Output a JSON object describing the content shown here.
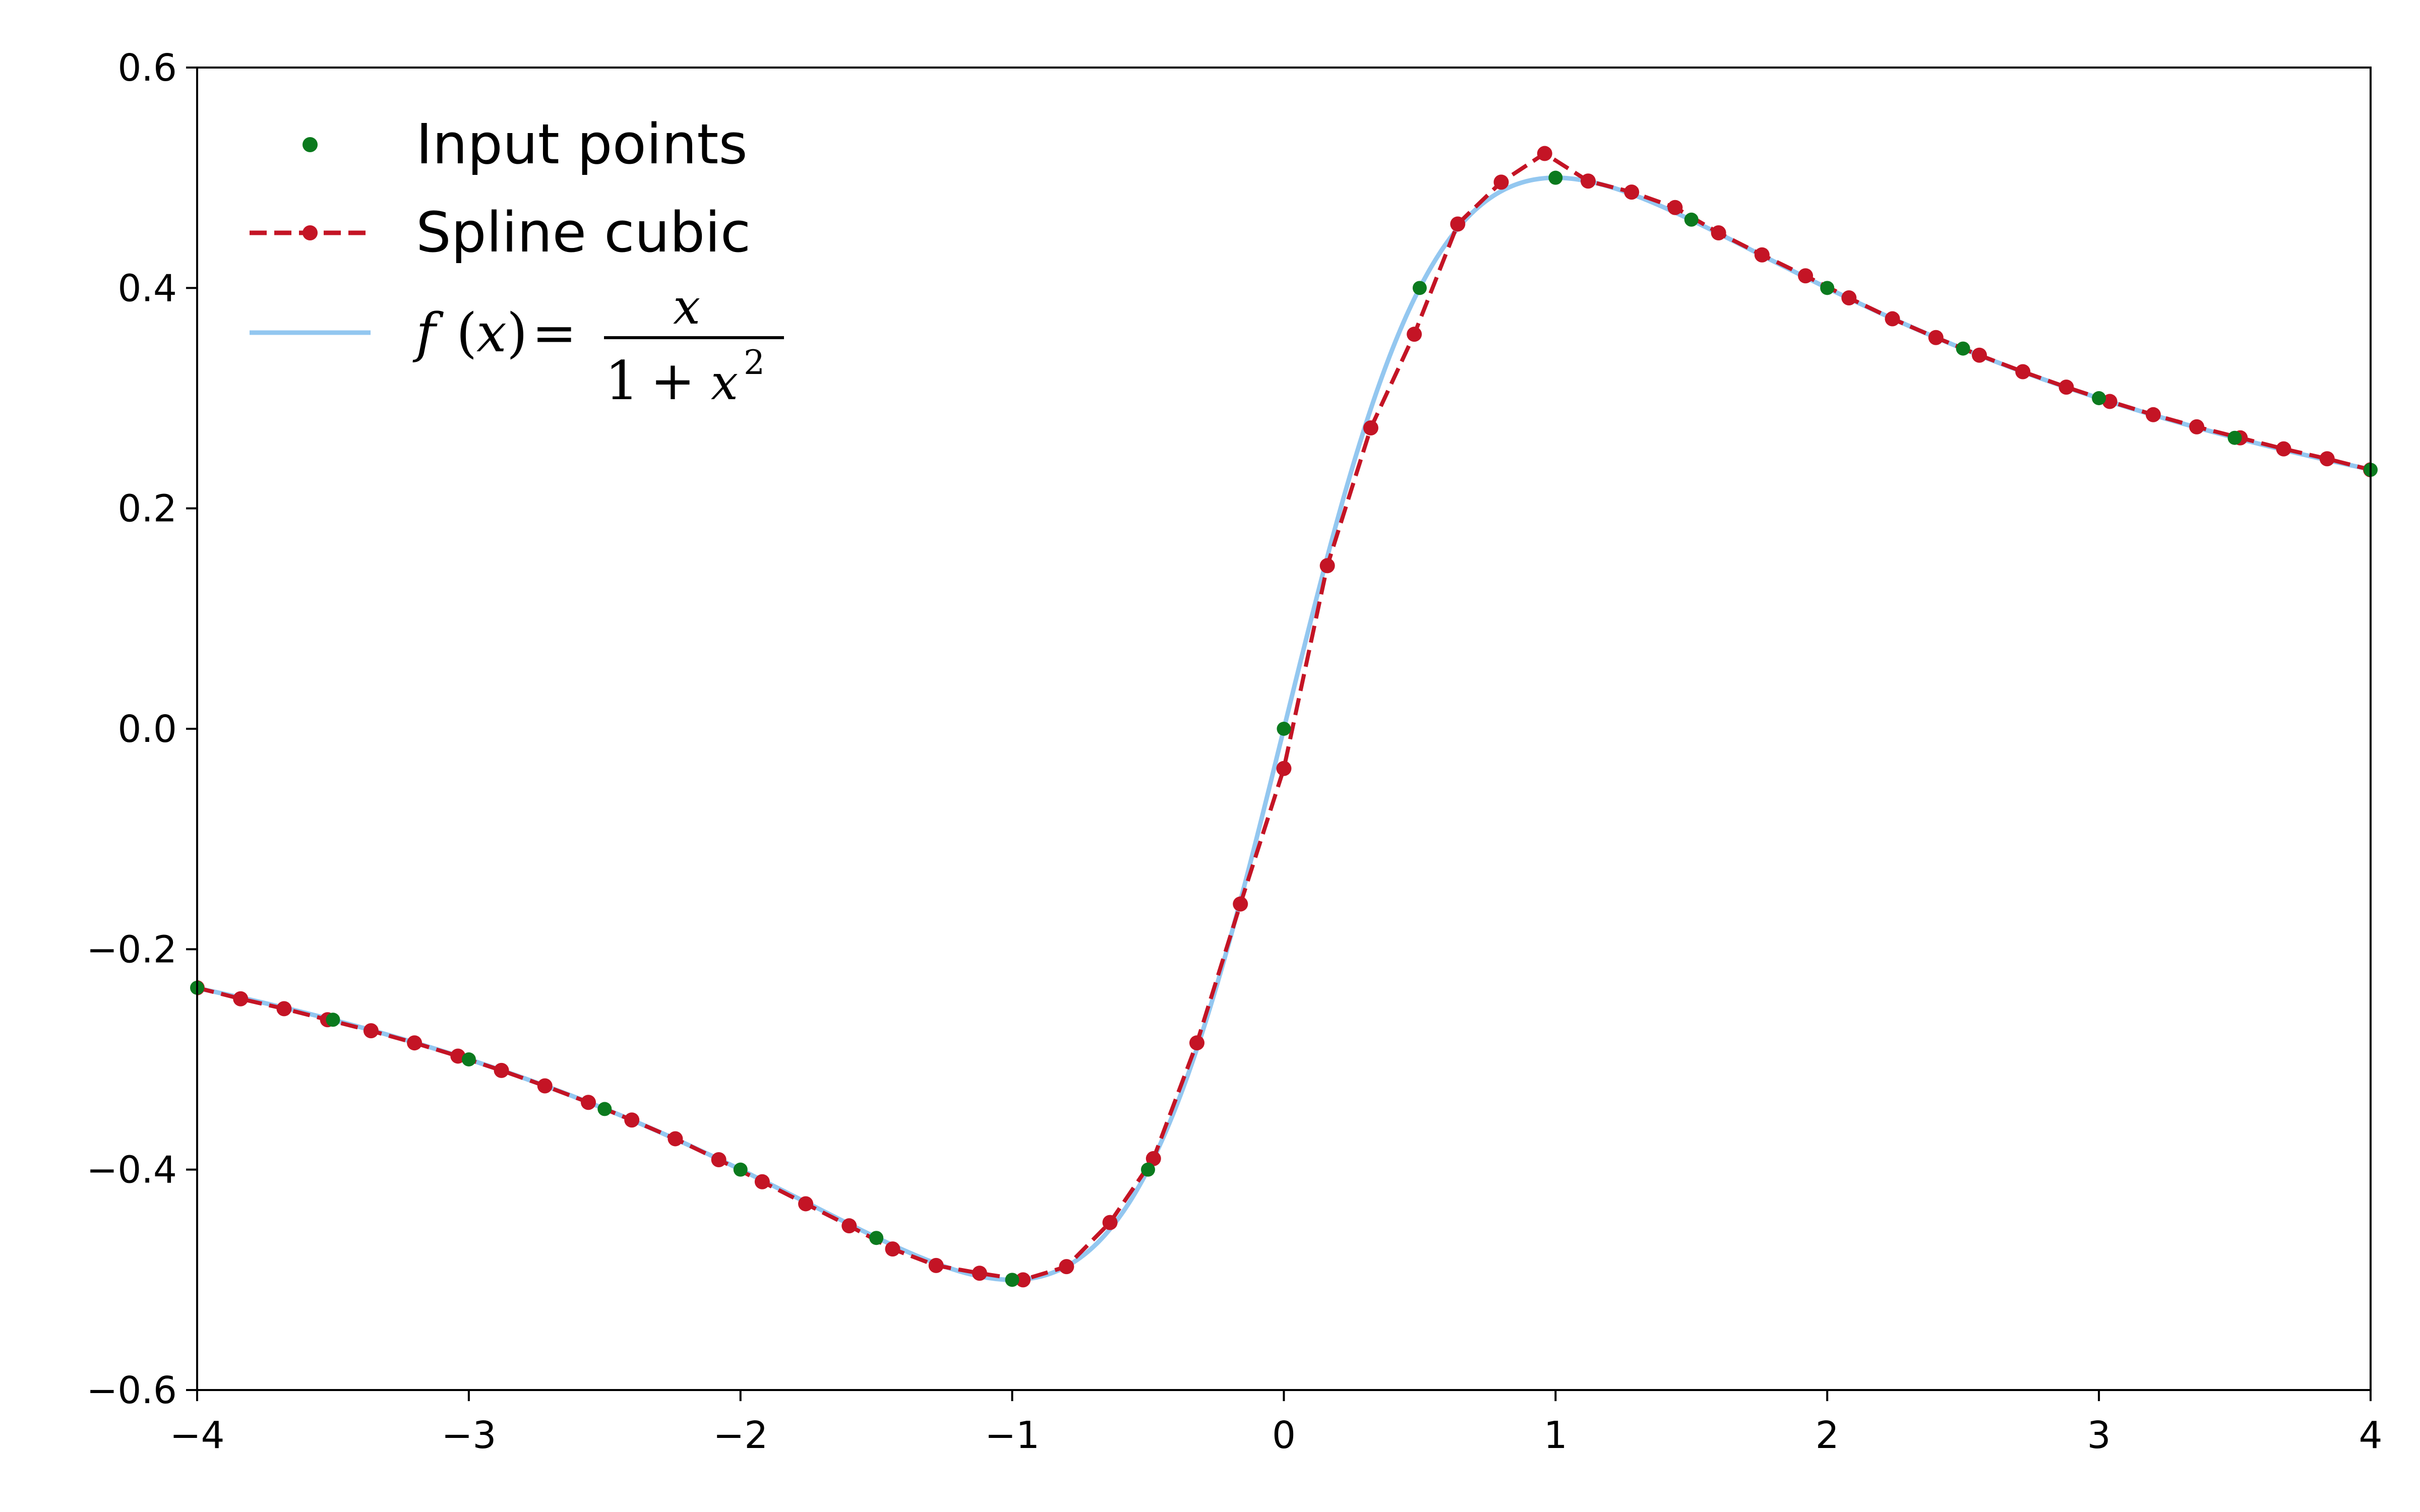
{
  "chart_data": {
    "type": "line",
    "title": "",
    "xlabel": "",
    "ylabel": "",
    "xlim": [
      -4,
      4
    ],
    "ylim": [
      -0.6,
      0.6
    ],
    "grid": false,
    "legend_position": "top-left",
    "x_ticks": [
      -4,
      -3,
      -2,
      -1,
      0,
      1,
      2,
      3,
      4
    ],
    "x_tick_labels": [
      "−4",
      "−3",
      "−2",
      "−1",
      "0",
      "1",
      "2",
      "3",
      "4"
    ],
    "y_ticks": [
      -0.6,
      -0.4,
      -0.2,
      0.0,
      0.2,
      0.4,
      0.6
    ],
    "y_tick_labels": [
      "−0.6",
      "−0.4",
      "−0.2",
      "0.0",
      "0.2",
      "0.4",
      "0.6"
    ],
    "series": [
      {
        "name": "Input points",
        "kind": "scatter",
        "color": "#0b7a1e",
        "x": [
          -4.0,
          -3.5,
          -3.0,
          -2.5,
          -2.0,
          -1.5,
          -1.0,
          -0.5,
          0.0,
          0.5,
          1.0,
          1.5,
          2.0,
          2.5,
          3.0,
          3.5,
          4.0
        ],
        "y": [
          -0.235,
          -0.264,
          -0.3,
          -0.345,
          -0.4,
          -0.462,
          -0.5,
          -0.4,
          0.0,
          0.4,
          0.5,
          0.462,
          0.4,
          0.345,
          0.3,
          0.264,
          0.235
        ]
      },
      {
        "name": "Spline cubic",
        "kind": "line-dashed-markers",
        "color": "#c41425",
        "x": [
          -4.0,
          -3.84,
          -3.68,
          -3.52,
          -3.36,
          -3.2,
          -3.04,
          -2.88,
          -2.72,
          -2.56,
          -2.4,
          -2.24,
          -2.08,
          -1.92,
          -1.76,
          -1.6,
          -1.44,
          -1.28,
          -1.12,
          -0.96,
          -0.8,
          -0.64,
          -0.48,
          -0.32,
          -0.16,
          0.0,
          0.16,
          0.32,
          0.48,
          0.64,
          0.8,
          0.96,
          1.12,
          1.28,
          1.44,
          1.6,
          1.76,
          1.92,
          2.08,
          2.24,
          2.4,
          2.56,
          2.72,
          2.88,
          3.04,
          3.2,
          3.36,
          3.52,
          3.68,
          3.84,
          4.0
        ],
        "y": [
          -0.235,
          -0.245,
          -0.254,
          -0.264,
          -0.274,
          -0.285,
          -0.297,
          -0.31,
          -0.324,
          -0.339,
          -0.355,
          -0.372,
          -0.391,
          -0.411,
          -0.431,
          -0.451,
          -0.472,
          -0.487,
          -0.494,
          -0.5,
          -0.488,
          -0.448,
          -0.39,
          -0.285,
          -0.159,
          -0.036,
          0.148,
          0.273,
          0.358,
          0.458,
          0.496,
          0.522,
          0.497,
          0.487,
          0.473,
          0.45,
          0.43,
          0.411,
          0.391,
          0.372,
          0.355,
          0.339,
          0.324,
          0.31,
          0.297,
          0.285,
          0.274,
          0.264,
          0.254,
          0.245,
          0.235
        ]
      },
      {
        "name": "f(x) = x/(1+x²)",
        "kind": "line",
        "color": "#93c7f0",
        "function": "x/(1+x^2)",
        "x_range": [
          -4,
          4
        ]
      }
    ]
  },
  "legend": {
    "entries": [
      {
        "label": "Input points"
      },
      {
        "label": "Spline cubic"
      },
      {
        "label": "f(x) = x/(1+x²)",
        "math": {
          "lhs_f": "f",
          "lhs_open": "(",
          "lhs_x": "x",
          "lhs_close": ")",
          "eq": "=",
          "num": "x",
          "den_one": "1",
          "den_plus": "+",
          "den_x": "x",
          "den_exp": "2"
        }
      }
    ]
  }
}
